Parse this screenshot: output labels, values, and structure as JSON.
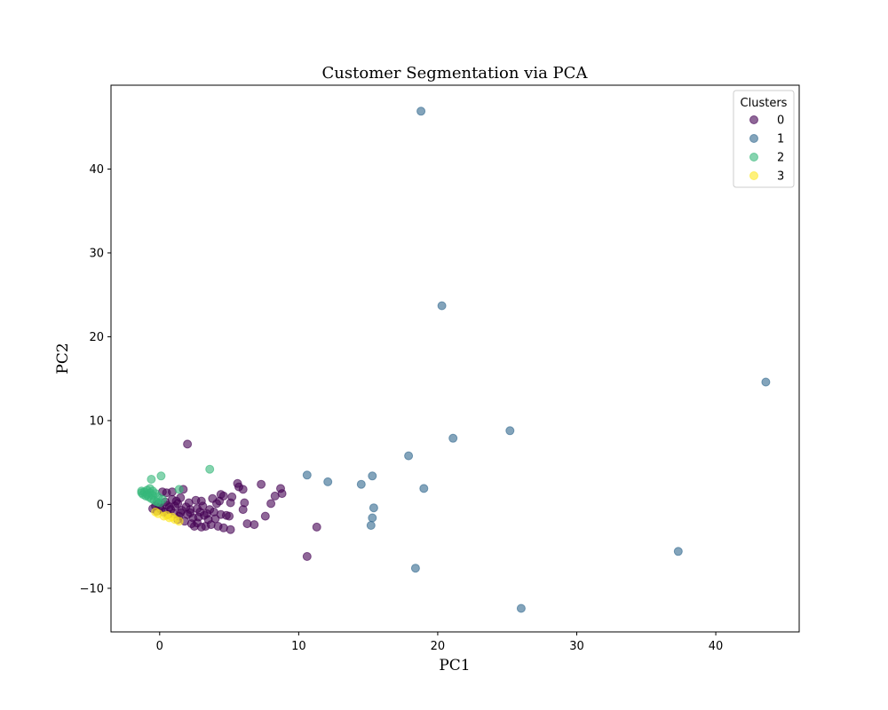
{
  "chart_data": {
    "type": "scatter",
    "title": "Customer Segmentation via PCA",
    "xlabel": "PC1",
    "ylabel": "PC2",
    "xlim": [
      -3.5,
      46
    ],
    "ylim": [
      -15.2,
      50
    ],
    "xticks": [
      0,
      10,
      20,
      30,
      40
    ],
    "yticks": [
      -10,
      0,
      10,
      20,
      30,
      40
    ],
    "grid": false,
    "legend": {
      "title": "Clusters",
      "placement": "top-right"
    },
    "marker_alpha": 0.6,
    "series": [
      {
        "name": "0",
        "color": "#440154",
        "points": [
          [
            2.0,
            7.2
          ],
          [
            10.6,
            -6.2
          ],
          [
            11.3,
            -2.7
          ],
          [
            7.3,
            2.4
          ],
          [
            8.7,
            1.9
          ],
          [
            8.8,
            1.3
          ],
          [
            8.3,
            1.0
          ],
          [
            8.0,
            0.1
          ],
          [
            7.6,
            -1.4
          ],
          [
            6.8,
            -2.4
          ],
          [
            6.3,
            -2.3
          ],
          [
            6.0,
            1.8
          ],
          [
            5.6,
            2.5
          ],
          [
            5.7,
            2.1
          ],
          [
            6.1,
            0.2
          ],
          [
            6.0,
            -0.6
          ],
          [
            5.2,
            0.9
          ],
          [
            5.1,
            0.2
          ],
          [
            5.0,
            -1.4
          ],
          [
            5.1,
            -3.0
          ],
          [
            4.6,
            1.0
          ],
          [
            4.4,
            1.2
          ],
          [
            4.3,
            0.4
          ],
          [
            4.6,
            -2.8
          ],
          [
            4.2,
            -2.6
          ],
          [
            3.8,
            0.7
          ],
          [
            3.9,
            -0.9
          ],
          [
            3.5,
            -1.8
          ],
          [
            3.3,
            -2.6
          ],
          [
            3.0,
            -2.7
          ],
          [
            2.7,
            -2.2
          ],
          [
            2.4,
            -1.6
          ],
          [
            2.2,
            -1.0
          ],
          [
            1.7,
            1.8
          ],
          [
            1.5,
            0.8
          ],
          [
            1.2,
            0.4
          ],
          [
            0.9,
            1.5
          ],
          [
            0.5,
            1.4
          ],
          [
            0.2,
            1.5
          ],
          [
            0.8,
            -0.6
          ],
          [
            1.0,
            -1.1
          ],
          [
            1.4,
            -1.4
          ],
          [
            1.9,
            -0.3
          ],
          [
            2.1,
            0.2
          ],
          [
            2.6,
            0.5
          ],
          [
            2.9,
            -0.9
          ],
          [
            3.2,
            -1.3
          ],
          [
            3.6,
            -0.6
          ],
          [
            4.0,
            -1.7
          ],
          [
            4.4,
            -1.2
          ],
          [
            0.0,
            -0.4
          ],
          [
            -0.3,
            -0.2
          ],
          [
            -0.5,
            -0.5
          ],
          [
            0.3,
            -0.9
          ],
          [
            0.6,
            -1.2
          ],
          [
            1.3,
            -1.8
          ],
          [
            1.8,
            -2.0
          ],
          [
            2.3,
            -2.3
          ],
          [
            2.8,
            -1.5
          ],
          [
            3.1,
            -0.2
          ],
          [
            1.6,
            -0.7
          ],
          [
            0.4,
            0.3
          ],
          [
            -0.1,
            0.1
          ],
          [
            2.5,
            -2.6
          ],
          [
            3.7,
            -2.4
          ],
          [
            4.8,
            -1.3
          ],
          [
            1.1,
            -0.2
          ],
          [
            0.7,
            -0.3
          ],
          [
            2.0,
            -1.2
          ],
          [
            3.4,
            -1.1
          ],
          [
            4.1,
            0.1
          ],
          [
            1.5,
            -1.0
          ],
          [
            2.2,
            -0.6
          ],
          [
            0.9,
            0.6
          ],
          [
            2.7,
            -0.5
          ],
          [
            3.0,
            0.4
          ],
          [
            1.3,
            0.1
          ],
          [
            0.1,
            -0.6
          ],
          [
            -0.2,
            -0.8
          ],
          [
            0.5,
            -0.1
          ]
        ]
      },
      {
        "name": "1",
        "color": "#31688e",
        "points": [
          [
            18.8,
            46.9
          ],
          [
            20.3,
            23.7
          ],
          [
            43.6,
            14.6
          ],
          [
            25.2,
            8.8
          ],
          [
            21.1,
            7.9
          ],
          [
            17.9,
            5.8
          ],
          [
            10.6,
            3.5
          ],
          [
            12.1,
            2.7
          ],
          [
            15.3,
            3.4
          ],
          [
            14.5,
            2.4
          ],
          [
            19.0,
            1.9
          ],
          [
            15.4,
            -0.4
          ],
          [
            15.3,
            -1.6
          ],
          [
            15.2,
            -2.5
          ],
          [
            18.4,
            -7.6
          ],
          [
            37.3,
            -5.6
          ],
          [
            26.0,
            -12.4
          ]
        ]
      },
      {
        "name": "2",
        "color": "#35b779",
        "points": [
          [
            -1.3,
            1.6
          ],
          [
            -1.1,
            1.5
          ],
          [
            -0.9,
            1.7
          ],
          [
            -0.7,
            1.4
          ],
          [
            -0.5,
            1.6
          ],
          [
            -0.3,
            1.3
          ],
          [
            -1.2,
            1.2
          ],
          [
            -1.0,
            1.0
          ],
          [
            -0.8,
            0.9
          ],
          [
            -0.6,
            0.7
          ],
          [
            -0.4,
            0.5
          ],
          [
            -0.2,
            0.3
          ],
          [
            0.0,
            0.2
          ],
          [
            -0.6,
            3.0
          ],
          [
            0.1,
            3.4
          ],
          [
            3.6,
            4.2
          ],
          [
            1.4,
            1.8
          ],
          [
            -0.5,
            1.1
          ],
          [
            -1.3,
            1.4
          ],
          [
            -0.9,
            1.2
          ],
          [
            -0.1,
            0.9
          ],
          [
            0.2,
            0.6
          ],
          [
            -0.7,
            1.9
          ]
        ]
      },
      {
        "name": "3",
        "color": "#fde725",
        "points": [
          [
            -0.1,
            -1.1
          ],
          [
            0.3,
            -1.4
          ],
          [
            0.7,
            -1.6
          ],
          [
            1.1,
            -1.8
          ],
          [
            1.4,
            -2.0
          ],
          [
            0.5,
            -1.3
          ],
          [
            -0.3,
            -0.9
          ],
          [
            0.9,
            -1.5
          ]
        ]
      }
    ]
  }
}
